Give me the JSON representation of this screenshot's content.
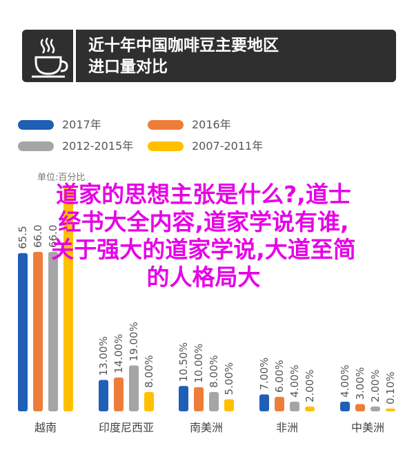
{
  "header": {
    "title": "近十年中国咖啡豆主要地区\n进口量对比"
  },
  "colors": {
    "header_bg": "#2f2f2f",
    "series_2017": "#1f5fb5",
    "series_2016": "#ee7d3a",
    "series_2012_2015": "#a5a5a5",
    "series_2007_2011": "#ffc000",
    "overlay_text": "#e600e6"
  },
  "unit_label": "单位:百分比",
  "overlay_lines": [
    "道家的思想主张是什么?,道士",
    "经书大全内容,道家学说有谁,",
    "关于强大的道家学说,大道至简",
    "的人格局大"
  ],
  "chart_data": {
    "type": "bar",
    "categories": [
      "越南",
      "印度尼西亚",
      "南美洲",
      "非洲",
      "中美洲"
    ],
    "series": [
      {
        "name": "2017年",
        "color": "#1f5fb5",
        "values": [
          65.5,
          13.0,
          10.5,
          7.0,
          4.0
        ]
      },
      {
        "name": "2016年",
        "color": "#ee7d3a",
        "values": [
          66.0,
          14.0,
          10.0,
          6.0,
          3.0
        ]
      },
      {
        "name": "2012-2015年",
        "color": "#a5a5a5",
        "values": [
          66.0,
          19.0,
          8.0,
          4.0,
          2.0
        ]
      },
      {
        "name": "2007-2011年",
        "color": "#ffc000",
        "values": [
          null,
          8.0,
          5.0,
          2.0,
          0.1
        ]
      }
    ],
    "value_labels": [
      [
        "65.5",
        "66.0",
        "66.0",
        ""
      ],
      [
        "13.00%",
        "14.00%",
        "19.00%",
        "8.00%"
      ],
      [
        "10.50%",
        "10.00%",
        "8.00%",
        "5.00%"
      ],
      [
        "7.00%",
        "6.00%",
        "4.00%",
        "2.00%"
      ],
      [
        "4.00%",
        "3.00%",
        "2.00%",
        "0.10%"
      ]
    ],
    "legend_position": "top",
    "grid": false,
    "ylim": [
      0,
      100
    ]
  }
}
